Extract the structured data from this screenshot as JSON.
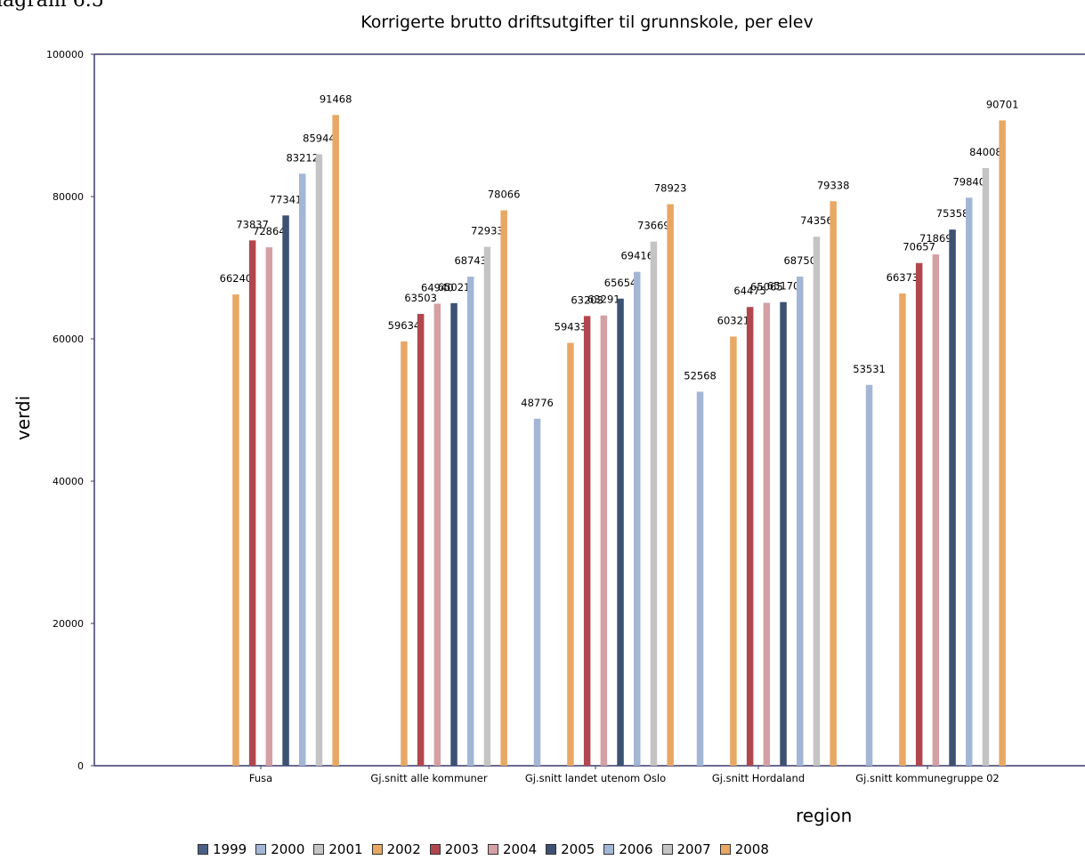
{
  "caption": "iagram 6.5",
  "chart_data": {
    "type": "bar",
    "title": "Korrigerte brutto driftsutgifter til grunnskole, per elev",
    "xlabel": "region",
    "ylabel": "verdi",
    "ylim": [
      0,
      100000
    ],
    "yticks": [
      "0",
      "20000",
      "40000",
      "60000",
      "80000",
      "100000"
    ],
    "grid": false,
    "legend_position": "bottom",
    "categories": [
      "Fusa",
      "Gj.snitt alle kommuner",
      "Gj.snitt landet utenom Oslo",
      "Gj.snitt Hordaland",
      "Gj.snitt kommunegruppe 02"
    ],
    "series": [
      {
        "name": "1999",
        "color": "#4a6085",
        "values": [
          null,
          null,
          null,
          null,
          null
        ]
      },
      {
        "name": "2000",
        "color": "#a3b6d6",
        "values": [
          null,
          null,
          48776,
          52568,
          53531
        ]
      },
      {
        "name": "2001",
        "color": "#c4c4c4",
        "values": [
          null,
          null,
          null,
          null,
          null
        ]
      },
      {
        "name": "2002",
        "color": "#e8a864",
        "values": [
          66240,
          59634,
          59433,
          60321,
          66373
        ]
      },
      {
        "name": "2003",
        "color": "#b2464e",
        "values": [
          73837,
          63503,
          63203,
          64475,
          70657
        ]
      },
      {
        "name": "2004",
        "color": "#d4a0a4",
        "values": [
          72864,
          64940,
          63291,
          65065,
          71869
        ]
      },
      {
        "name": "2005",
        "color": "#3d5272",
        "values": [
          77341,
          65021,
          65654,
          65170,
          75358
        ]
      },
      {
        "name": "2006",
        "color": "#a3b6d6",
        "values": [
          83212,
          68743,
          69416,
          68750,
          79840
        ]
      },
      {
        "name": "2007",
        "color": "#c4c4c4",
        "values": [
          85944,
          72933,
          73669,
          74356,
          84008
        ]
      },
      {
        "name": "2008",
        "color": "#e8a864",
        "values": [
          91468,
          78066,
          78923,
          79338,
          90701
        ]
      }
    ],
    "value_labels": [
      [
        "",
        "",
        "",
        "66240",
        "73837",
        "72864",
        "77341",
        "83212",
        "85944",
        "91468"
      ],
      [
        "",
        "",
        "",
        "59634",
        "63503",
        "64940",
        "65021",
        "68743",
        "72933",
        "78066"
      ],
      [
        "",
        "48776",
        "",
        "59433",
        "63203",
        "63291",
        "65654",
        "69416",
        "73669",
        "78923"
      ],
      [
        "",
        "52568",
        "",
        "60321",
        "64475",
        "65065",
        "65170",
        "68750",
        "74356",
        "79338"
      ],
      [
        "",
        "53531",
        "",
        "66373",
        "70657",
        "71869",
        "75358",
        "79840",
        "84008",
        "90701"
      ]
    ]
  }
}
